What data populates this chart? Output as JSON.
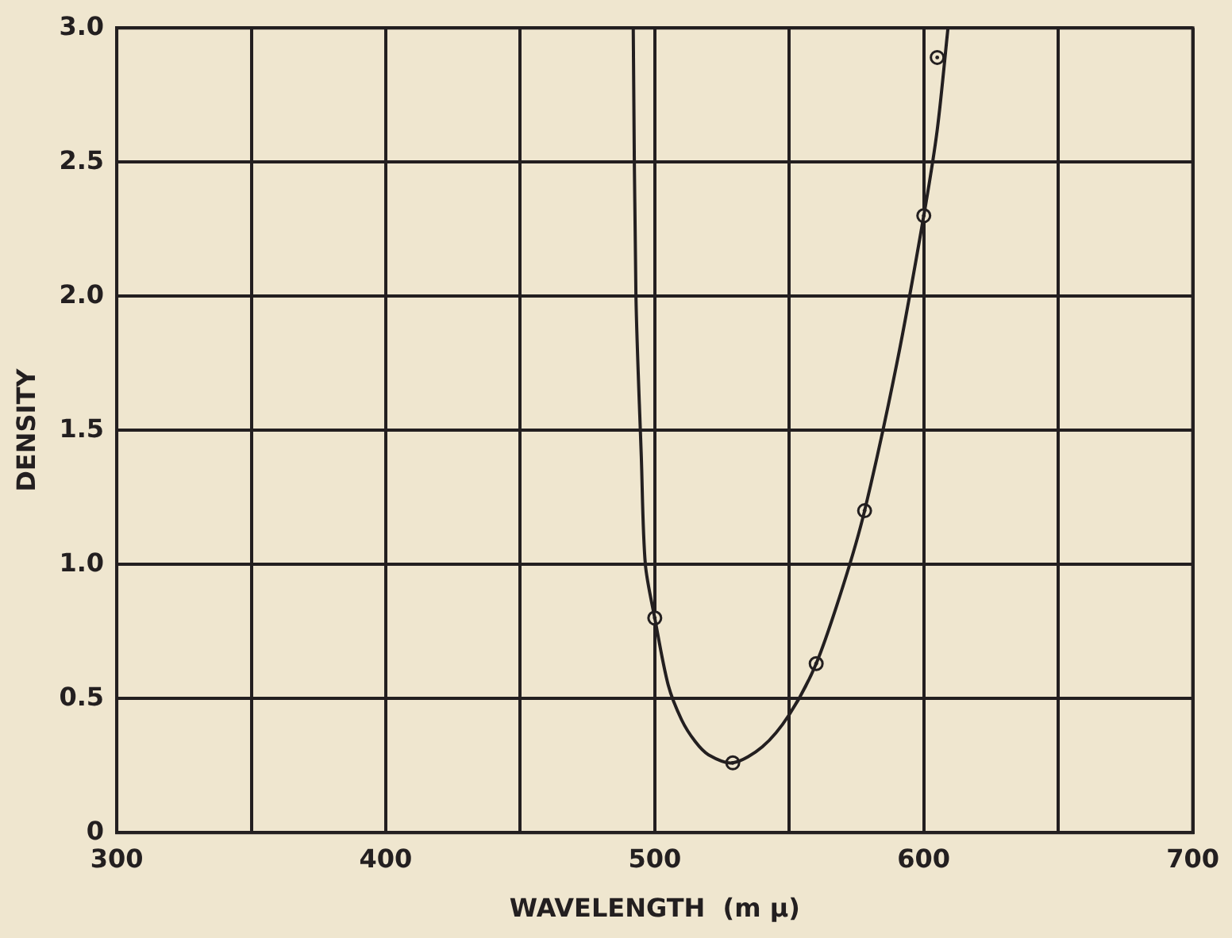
{
  "chart_data": {
    "type": "scatter",
    "xlabel": "WAVELENGTH  (m μ)",
    "ylabel": "DENSITY",
    "xlim": [
      300,
      700
    ],
    "ylim": [
      0,
      3
    ],
    "xticks": [
      300,
      {
        "value": 350,
        "label": null
      },
      400,
      {
        "value": 450,
        "label": null
      },
      500,
      {
        "value": 550,
        "label": null
      },
      600,
      {
        "value": 650,
        "label": null
      },
      700
    ],
    "yticks": [
      0,
      0.5,
      {
        "value": 1,
        "label": "1.0"
      },
      1.5,
      {
        "value": 2,
        "label": "2.0"
      },
      2.5,
      {
        "value": 3,
        "label": "3.0"
      }
    ],
    "grid": true,
    "legend": false,
    "series": [
      {
        "type": "line",
        "marker": "none",
        "line_style": "solid",
        "color": "#231f20",
        "x": [
          492,
          493,
          495,
          496.5,
          500,
          505,
          510,
          515,
          520,
          529,
          540,
          550,
          560,
          570,
          578,
          590,
          600,
          605,
          609
        ],
        "values": [
          3.0,
          2.0,
          1.4,
          1.0,
          0.8,
          0.55,
          0.42,
          0.34,
          0.29,
          0.26,
          0.32,
          0.44,
          0.63,
          0.92,
          1.2,
          1.75,
          2.3,
          2.62,
          3.0
        ]
      },
      {
        "type": "scatter",
        "marker": "circle",
        "color": "#231f20",
        "x": [
          500,
          529,
          560,
          578,
          600,
          605
        ],
        "values": [
          0.8,
          0.26,
          0.63,
          1.2,
          2.3,
          2.89
        ]
      }
    ]
  }
}
